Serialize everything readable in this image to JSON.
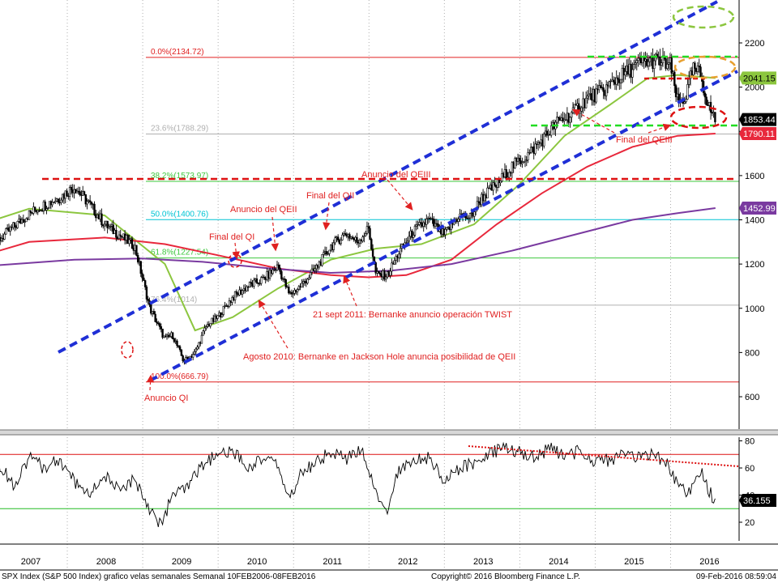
{
  "footer": {
    "left": "SPX Index (S&P 500 Index) grafico velas semanales  Semanal 10FEB2006-08FEB2016",
    "center": "Copyright© 2016 Bloomberg Finance L.P.",
    "right": "09-Feb-2016 08:59:04"
  },
  "colors": {
    "price": "#000000",
    "ma_green": "#8cc63f",
    "ma_red": "#e8283c",
    "ma_purple": "#7a3aa0",
    "channel": "#1f2fd6",
    "fib_red": "#e02020",
    "fib_teal": "#00c4d4",
    "fib_green": "#3ec83e",
    "fib_gray": "#b0b0b0",
    "annotation": "#e02020",
    "support": "#22dd22",
    "resistance": "#dd1111",
    "target": "#e8a030",
    "target2": "#8cc63f"
  },
  "chart_data": [
    {
      "type": "line",
      "subtype": "candlestick-weekly",
      "title": "",
      "x_axis_labels": [
        "2007",
        "2008",
        "2009",
        "2010",
        "2011",
        "2012",
        "2013",
        "2014",
        "2015",
        "2016"
      ],
      "y_axis_ticks": [
        600,
        800,
        1000,
        1200,
        1400,
        1600,
        1800,
        2000,
        2200
      ],
      "ylim": [
        480,
        2380
      ],
      "y_scale": "linear",
      "series": [
        {
          "name": "",
          "x": [
            2006.0,
            2006.3,
            2006.6,
            2006.9,
            2007.1,
            2007.4,
            2007.6,
            2007.8,
            2008.0,
            2008.2,
            2008.4,
            2008.6,
            2008.8,
            2008.9,
            2009.05,
            2009.2,
            2009.35,
            2009.5,
            2009.7,
            2009.9,
            2010.1,
            2010.3,
            2010.45,
            2010.6,
            2010.8,
            2011.0,
            2011.2,
            2011.35,
            2011.5,
            2011.6,
            2011.75,
            2011.9,
            2012.1,
            2012.3,
            2012.5,
            2012.7,
            2012.85,
            2013.0,
            2013.2,
            2013.4,
            2013.6,
            2013.8,
            2014.0,
            2014.2,
            2014.4,
            2014.6,
            2014.8,
            2014.9,
            2015.1,
            2015.3,
            2015.5,
            2015.6,
            2015.7,
            2015.8,
            2015.9,
            2016.0,
            2016.1
          ],
          "y": [
            1280,
            1300,
            1310,
            1400,
            1450,
            1500,
            1550,
            1470,
            1380,
            1330,
            1280,
            1000,
            860,
            880,
            760,
            800,
            920,
            960,
            1050,
            1100,
            1130,
            1190,
            1060,
            1100,
            1180,
            1280,
            1340,
            1300,
            1360,
            1150,
            1150,
            1250,
            1350,
            1400,
            1330,
            1420,
            1410,
            1500,
            1560,
            1640,
            1690,
            1760,
            1840,
            1880,
            1950,
            1980,
            2040,
            2060,
            2110,
            2120,
            2100,
            1930,
            1950,
            2080,
            2060,
            1920,
            1853.44
          ]
        },
        {
          "name": "",
          "x": [
            2006.0,
            2007.0,
            2008.0,
            2008.8,
            2009.2,
            2009.7,
            2010.3,
            2011.0,
            2011.6,
            2012.2,
            2012.9,
            2013.5,
            2014.1,
            2014.7,
            2015.2,
            2015.6,
            2016.1
          ],
          "y": [
            1340,
            1450,
            1420,
            1200,
            900,
            960,
            1090,
            1220,
            1270,
            1290,
            1380,
            1560,
            1780,
            1920,
            2040,
            2055,
            2041.15
          ]
        },
        {
          "name": "",
          "x": [
            2006.0,
            2007.0,
            2008.0,
            2008.8,
            2009.5,
            2010.3,
            2011.0,
            2011.5,
            2012.0,
            2012.6,
            2013.2,
            2013.8,
            2014.4,
            2015.0,
            2015.6,
            2016.1
          ],
          "y": [
            1200,
            1300,
            1320,
            1290,
            1240,
            1180,
            1150,
            1140,
            1150,
            1220,
            1380,
            1520,
            1640,
            1730,
            1780,
            1790.11
          ]
        },
        {
          "name": "",
          "x": [
            2006.0,
            2006.8,
            2007.6,
            2008.5,
            2009.3,
            2010.2,
            2011.0,
            2011.8,
            2012.6,
            2013.4,
            2014.2,
            2015.0,
            2015.6,
            2016.1
          ],
          "y": [
            1180,
            1200,
            1220,
            1225,
            1210,
            1180,
            1160,
            1170,
            1200,
            1260,
            1330,
            1400,
            1430,
            1452.99
          ]
        }
      ],
      "last_values": [
        "2041.15",
        "1853.44",
        "1790.11",
        "1452.99"
      ],
      "fibonacci": [
        {
          "label": "0.0%(2134.72)",
          "value": 2134.72
        },
        {
          "label": "23.6%(1788.29)",
          "value": 1788.29
        },
        {
          "label": "38.2%(1573.97)",
          "value": 1573.97
        },
        {
          "label": "50.0%(1400.76)",
          "value": 1400.76
        },
        {
          "label": "61.8%(1227.54)",
          "value": 1227.54
        },
        {
          "label": "100.0%(666.79)",
          "value": 666.79
        }
      ],
      "fib_hidden": {
        "value": 1014,
        "label": "76.4%(1014)"
      },
      "annotations": [
        "Anuncio QI",
        "Final del QI",
        "Anuncio del QEII",
        "Final del QII",
        "Anuncio del QEIII",
        "Final del QEIII",
        "21 sept 2011: Bernanke anuncio operación TWIST",
        "Agosto 2010: Bernanke en Jackson Hole anuncia posibilidad de QEII"
      ]
    },
    {
      "type": "line",
      "title": "",
      "y_axis_ticks": [
        20,
        40,
        60,
        80
      ],
      "ylim": [
        8,
        86
      ],
      "last_value": "36.155",
      "levels": [
        70,
        30
      ],
      "series": [
        {
          "name": "",
          "x": [
            2006.0,
            2006.2,
            2006.4,
            2006.6,
            2006.8,
            2007.0,
            2007.2,
            2007.4,
            2007.6,
            2007.8,
            2008.0,
            2008.2,
            2008.4,
            2008.6,
            2008.75,
            2008.9,
            2009.1,
            2009.3,
            2009.5,
            2009.7,
            2009.9,
            2010.1,
            2010.3,
            2010.45,
            2010.6,
            2010.8,
            2011.0,
            2011.2,
            2011.4,
            2011.6,
            2011.75,
            2011.9,
            2012.1,
            2012.3,
            2012.5,
            2012.7,
            2012.9,
            2013.1,
            2013.3,
            2013.5,
            2013.7,
            2013.9,
            2014.1,
            2014.3,
            2014.5,
            2014.7,
            2014.9,
            2015.1,
            2015.3,
            2015.5,
            2015.6,
            2015.75,
            2015.9,
            2016.0,
            2016.1
          ],
          "y": [
            58,
            66,
            52,
            62,
            48,
            68,
            60,
            66,
            50,
            40,
            55,
            42,
            52,
            30,
            18,
            40,
            45,
            62,
            70,
            72,
            60,
            68,
            62,
            36,
            56,
            64,
            72,
            66,
            74,
            40,
            30,
            58,
            66,
            68,
            50,
            60,
            64,
            70,
            76,
            72,
            68,
            74,
            70,
            72,
            64,
            66,
            70,
            68,
            70,
            60,
            48,
            42,
            58,
            44,
            36.155
          ]
        }
      ]
    }
  ]
}
